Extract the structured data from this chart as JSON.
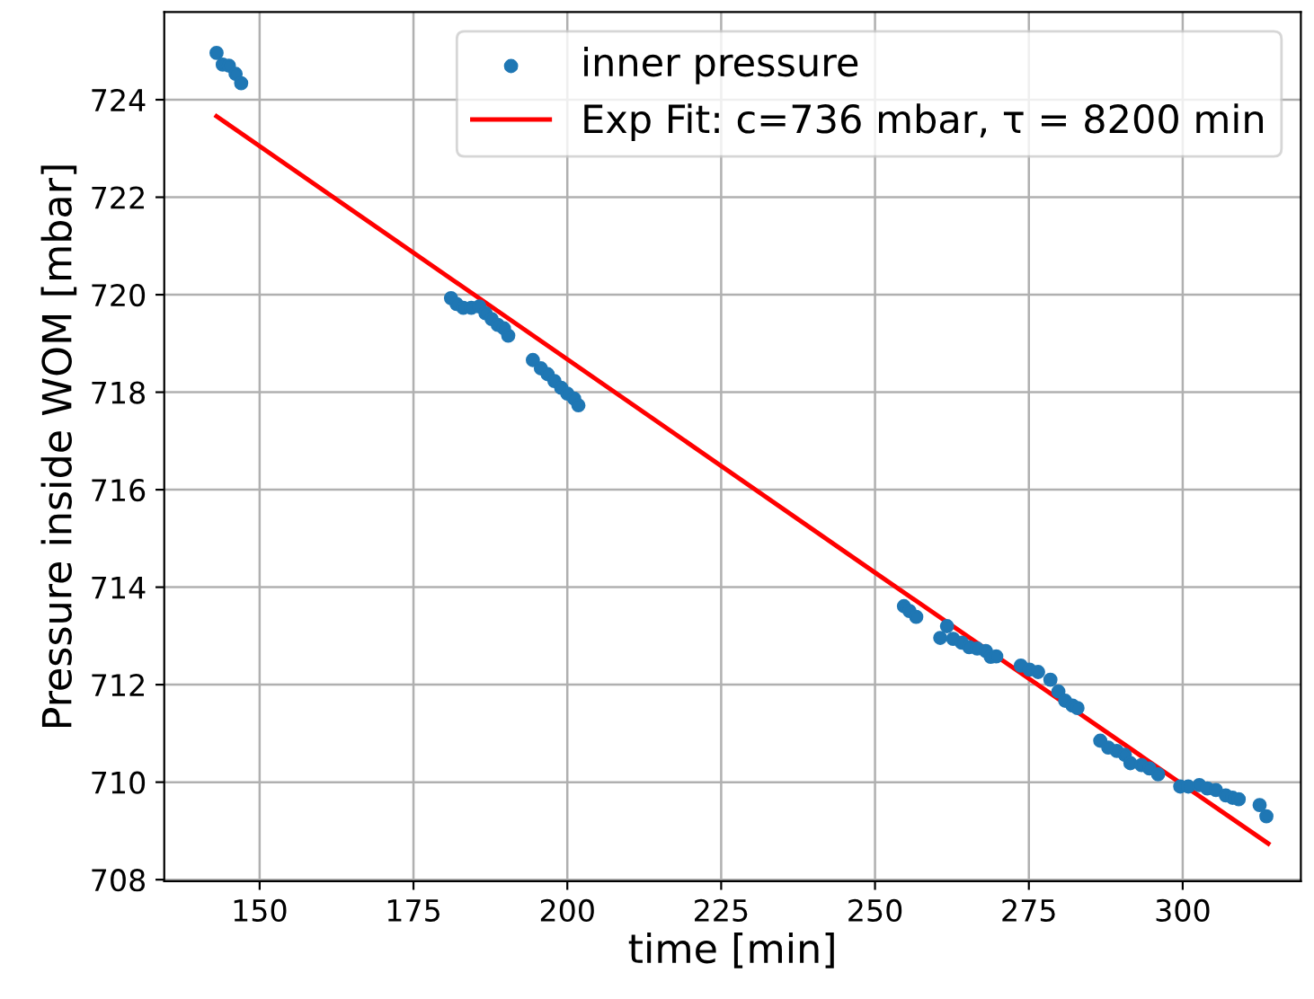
{
  "chart_data": {
    "type": "scatter",
    "xlabel": "time [min]",
    "ylabel": "Pressure inside WOM [mbar]",
    "xlim": [
      134.5,
      319.2
    ],
    "ylim": [
      707.97,
      725.8
    ],
    "xticks": [
      150,
      175,
      200,
      225,
      250,
      275,
      300
    ],
    "yticks": [
      708,
      710,
      712,
      714,
      716,
      718,
      720,
      722,
      724
    ],
    "grid": true,
    "legend": "top right",
    "marker": "circle",
    "series": [
      {
        "name": "inner pressure",
        "color": "#1f77b4",
        "x": [
          143.0,
          144.0,
          145.0,
          146.1,
          147.0,
          181.1,
          182.0,
          183.1,
          184.4,
          185.7,
          186.7,
          187.7,
          188.7,
          189.7,
          190.4,
          194.4,
          195.7,
          196.8,
          197.9,
          199.0,
          200.0,
          201.1,
          201.8,
          254.7,
          255.6,
          256.7,
          260.6,
          261.7,
          262.7,
          264.1,
          265.3,
          266.6,
          268.0,
          268.8,
          269.7,
          273.7,
          275.1,
          276.5,
          278.5,
          279.8,
          280.9,
          282.1,
          282.9,
          286.6,
          287.9,
          289.3,
          290.6,
          291.5,
          293.3,
          294.6,
          296.0,
          299.6,
          300.9,
          302.7,
          304.0,
          305.4,
          307.0,
          308.1,
          309.1,
          312.5,
          313.6
        ],
        "values": [
          724.96,
          724.72,
          724.7,
          724.53,
          724.34,
          719.93,
          719.81,
          719.73,
          719.73,
          719.76,
          719.62,
          719.5,
          719.38,
          719.31,
          719.16,
          718.66,
          718.49,
          718.37,
          718.23,
          718.09,
          717.97,
          717.87,
          717.73,
          713.61,
          713.51,
          713.39,
          712.96,
          713.2,
          712.94,
          712.86,
          712.77,
          712.74,
          712.69,
          712.57,
          712.58,
          712.39,
          712.31,
          712.26,
          712.1,
          711.86,
          711.67,
          711.57,
          711.52,
          710.85,
          710.71,
          710.64,
          710.56,
          710.39,
          710.35,
          710.28,
          710.16,
          709.91,
          709.91,
          709.94,
          709.87,
          709.84,
          709.73,
          709.68,
          709.65,
          709.53,
          709.3
        ]
      },
      {
        "name": "Exp Fit: c=736 mbar, τ = 8200 min",
        "type": "line",
        "color": "#ff0000",
        "line_style": "solid",
        "marker": "none",
        "x": [
          143.0,
          250.0,
          313.9
        ],
        "values": [
          723.66,
          714.3,
          708.74
        ]
      }
    ]
  }
}
